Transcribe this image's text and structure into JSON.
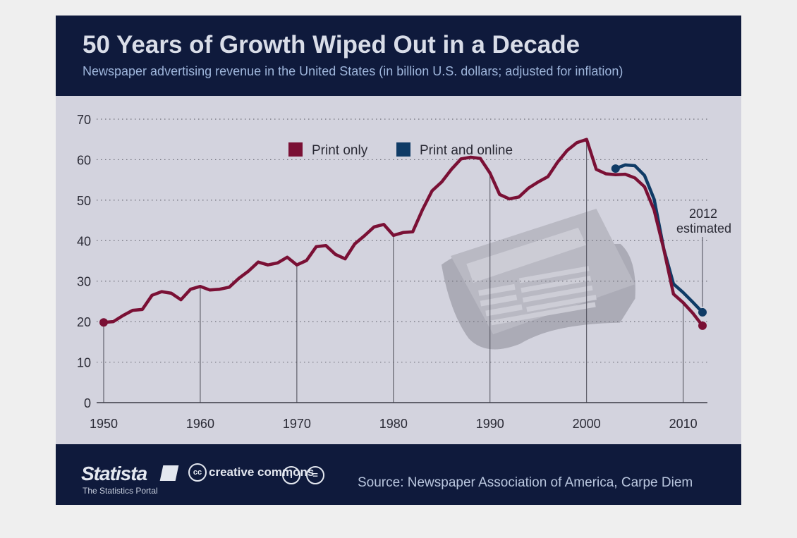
{
  "header": {
    "title": "50 Years of Growth Wiped Out in a Decade",
    "subtitle": "Newspaper advertising revenue in the United States (in billion U.S. dollars; adjusted for inflation)"
  },
  "footer": {
    "logo": "Statista",
    "logo_tagline": "The Statistics Portal",
    "license_logo": "creative commons",
    "source": "Source: Newspaper Association of America, Carpe Diem"
  },
  "icons": {
    "newspaper": "newspaper-icon",
    "statista_mark": "statista-logo-icon",
    "cc_attribution": "cc-by-icon",
    "cc_noderivs": "cc-nd-icon"
  },
  "chart_data": {
    "type": "line",
    "title": "50 Years of Growth Wiped Out in a Decade",
    "subtitle": "Newspaper advertising revenue in the United States (in billion U.S. dollars; adjusted for inflation)",
    "xlabel": "",
    "ylabel": "",
    "xlim": [
      1950,
      2012
    ],
    "ylim": [
      0,
      70
    ],
    "x_ticks": [
      1950,
      1960,
      1970,
      1980,
      1990,
      2000,
      2010
    ],
    "y_ticks": [
      0,
      10,
      20,
      30,
      40,
      50,
      60,
      70
    ],
    "grid": "horizontal dotted",
    "legend_position": "top-center",
    "colors": {
      "print_only": "#7a1035",
      "print_and_online": "#0f3b66"
    },
    "annotation": {
      "text_line1": "2012",
      "text_line2": "estimated",
      "x": 2012
    },
    "series": [
      {
        "name": "Print only",
        "x": [
          1950,
          1951,
          1952,
          1953,
          1954,
          1955,
          1956,
          1957,
          1958,
          1959,
          1960,
          1961,
          1962,
          1963,
          1964,
          1965,
          1966,
          1967,
          1968,
          1969,
          1970,
          1971,
          1972,
          1973,
          1974,
          1975,
          1976,
          1977,
          1978,
          1979,
          1980,
          1981,
          1982,
          1983,
          1984,
          1985,
          1986,
          1987,
          1988,
          1989,
          1990,
          1991,
          1992,
          1993,
          1994,
          1995,
          1996,
          1997,
          1998,
          1999,
          2000,
          2001,
          2002,
          2003,
          2004,
          2005,
          2006,
          2007,
          2008,
          2009,
          2010,
          2011,
          2012
        ],
        "values": [
          19.8,
          20.0,
          21.5,
          22.8,
          23.0,
          26.5,
          27.4,
          27.0,
          25.4,
          28.0,
          28.7,
          27.8,
          28.0,
          28.5,
          30.7,
          32.5,
          34.7,
          34.0,
          34.5,
          35.9,
          34.0,
          35.1,
          38.5,
          38.8,
          36.6,
          35.5,
          39.2,
          41.2,
          43.4,
          44.0,
          41.3,
          42.0,
          42.2,
          47.6,
          52.3,
          54.5,
          57.6,
          60.2,
          60.6,
          60.3,
          56.7,
          51.4,
          50.3,
          50.8,
          53.0,
          54.5,
          55.8,
          59.4,
          62.3,
          64.2,
          65.0,
          57.6,
          56.5,
          56.3,
          56.4,
          55.5,
          53.3,
          47.5,
          37.8,
          26.8,
          24.7,
          22.1,
          19.0
        ]
      },
      {
        "name": "Print and online",
        "x": [
          2003,
          2004,
          2005,
          2006,
          2007,
          2008,
          2009,
          2010,
          2011,
          2012
        ],
        "values": [
          57.8,
          58.7,
          58.5,
          56.1,
          50.2,
          37.9,
          29.3,
          27.2,
          24.8,
          22.3
        ]
      }
    ]
  }
}
